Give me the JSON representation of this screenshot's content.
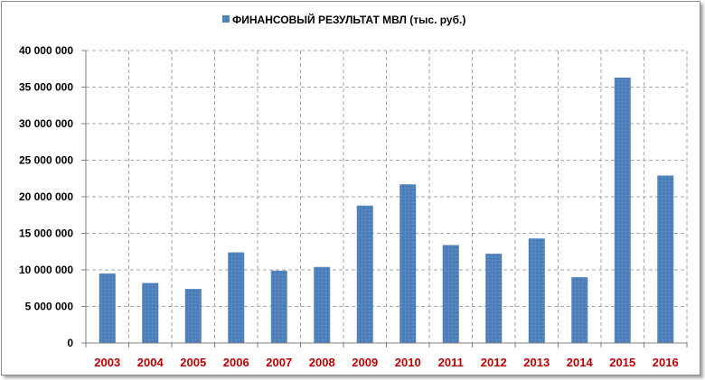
{
  "chart_data": {
    "type": "bar",
    "categories": [
      "2003",
      "2004",
      "2005",
      "2006",
      "2007",
      "2008",
      "2009",
      "2010",
      "2011",
      "2012",
      "2013",
      "2014",
      "2015",
      "2016"
    ],
    "series": [
      {
        "name": "ФИНАНСОВЫЙ РЕЗУЛЬТАТ  МВЛ (тыс. руб.)",
        "values": [
          9500000,
          8200000,
          7400000,
          12400000,
          9900000,
          10400000,
          18800000,
          21700000,
          13400000,
          12200000,
          14300000,
          9000000,
          36300000,
          22900000
        ]
      }
    ],
    "ylim": [
      0,
      40000000
    ],
    "yticks": [
      0,
      5000000,
      10000000,
      15000000,
      20000000,
      25000000,
      30000000,
      35000000,
      40000000
    ],
    "ytick_labels": [
      "0",
      "5 000 000",
      "10 000 000",
      "15 000 000",
      "20 000 000",
      "25 000 000",
      "30 000 000",
      "35 000 000",
      "40 000 000"
    ],
    "grid": true,
    "legend_position": "top",
    "colors": {
      "bar": "#4f81bd",
      "category_label": "#c00000",
      "grid": "#a6a6a6"
    }
  }
}
